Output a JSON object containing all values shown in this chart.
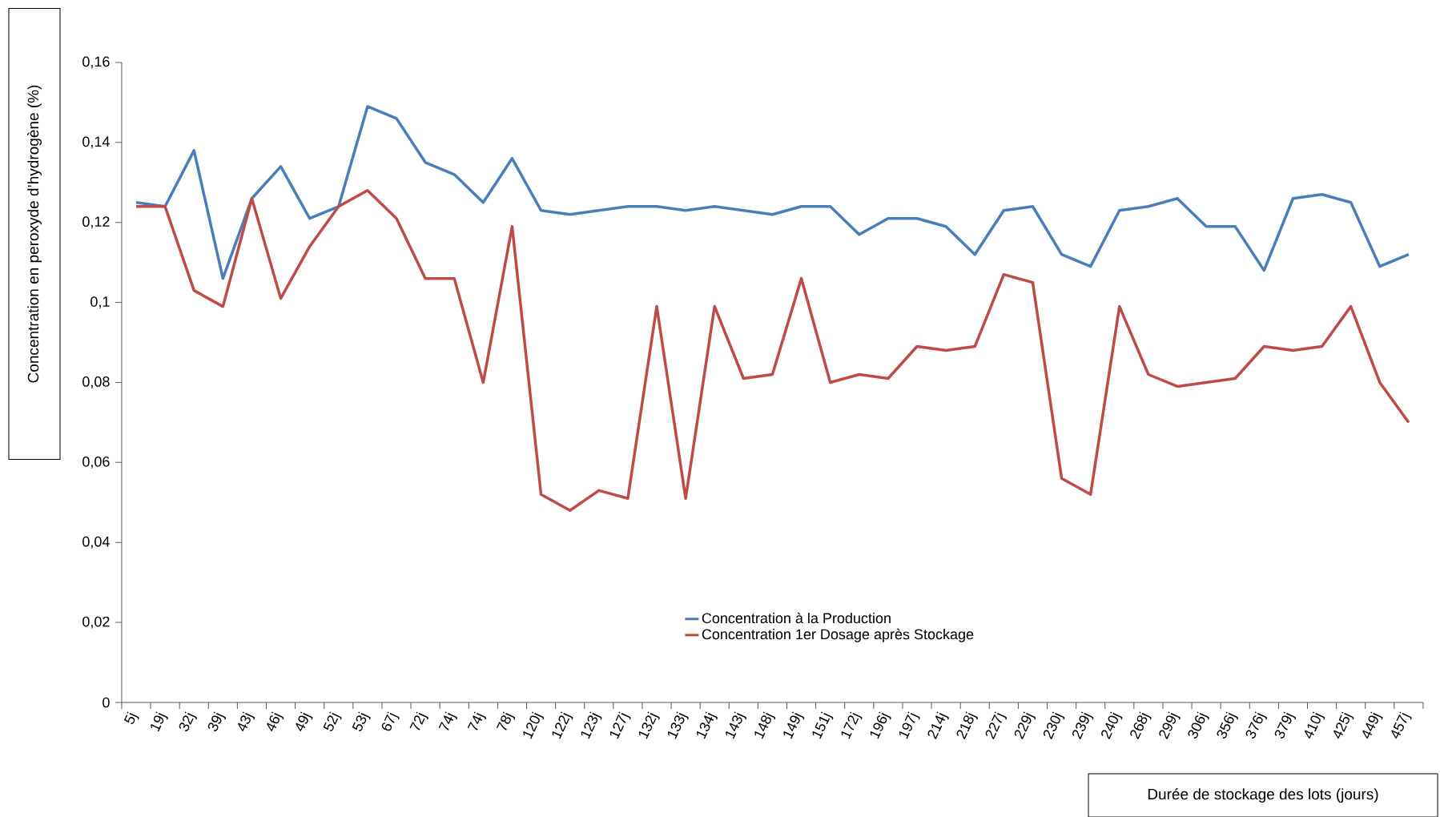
{
  "chart_data": {
    "type": "line",
    "ylabel": "Concentration  en peroxyde  d’hydrogène  (%)",
    "xlabel": "Durée de stockage des lots (jours)",
    "categories": [
      "5j",
      "19j",
      "32j",
      "39j",
      "43j",
      "46j",
      "49j",
      "52j",
      "53j",
      "67j",
      "72j",
      "74j",
      "74j",
      "78j",
      "120j",
      "122j",
      "123j",
      "127j",
      "132j",
      "133j",
      "134j",
      "143j",
      "148j",
      "149j",
      "151j",
      "172j",
      "196j",
      "197j",
      "214j",
      "218j",
      "227j",
      "229j",
      "230j",
      "239j",
      "240j",
      "268j",
      "299j",
      "306j",
      "356j",
      "376j",
      "379j",
      "410j",
      "425j",
      "449j",
      "457j"
    ],
    "series": [
      {
        "name": "Concentration à la Production",
        "color": "#4a7ebb",
        "values": [
          0.125,
          0.124,
          0.138,
          0.106,
          0.126,
          0.134,
          0.121,
          0.124,
          0.149,
          0.146,
          0.135,
          0.132,
          0.125,
          0.136,
          0.123,
          0.122,
          0.123,
          0.124,
          0.124,
          0.123,
          0.124,
          0.123,
          0.122,
          0.124,
          0.124,
          0.117,
          0.121,
          0.121,
          0.119,
          0.112,
          0.123,
          0.124,
          0.112,
          0.109,
          0.123,
          0.124,
          0.126,
          0.119,
          0.119,
          0.108,
          0.126,
          0.127,
          0.125,
          0.109,
          0.112
        ]
      },
      {
        "name": "Concentration 1er Dosage après Stockage",
        "color": "#be4b48",
        "values": [
          0.124,
          0.124,
          0.103,
          0.099,
          0.126,
          0.101,
          0.114,
          0.124,
          0.128,
          0.121,
          0.106,
          0.106,
          0.08,
          0.119,
          0.052,
          0.048,
          0.053,
          0.051,
          0.099,
          0.051,
          0.099,
          0.081,
          0.082,
          0.106,
          0.08,
          0.082,
          0.081,
          0.089,
          0.088,
          0.089,
          0.107,
          0.105,
          0.056,
          0.052,
          0.099,
          0.082,
          0.079,
          0.08,
          0.081,
          0.089,
          0.088,
          0.089,
          0.099,
          0.08,
          0.07
        ]
      }
    ],
    "ylim": [
      0,
      0.16
    ],
    "yticks": [
      0,
      {
        "value": 0.02,
        "label": "0,02"
      },
      {
        "value": 0.04,
        "label": "0,04"
      },
      {
        "value": 0.06,
        "label": "0,06"
      },
      {
        "value": 0.08,
        "label": "0,08"
      },
      {
        "value": 0.1,
        "label": "0,1"
      },
      {
        "value": 0.12,
        "label": "0,12"
      },
      {
        "value": 0.14,
        "label": "0,14"
      },
      {
        "value": 0.16,
        "label": "0,16"
      }
    ],
    "legend": "bottom",
    "marker": "none",
    "line_style": "solid",
    "grid": false
  }
}
